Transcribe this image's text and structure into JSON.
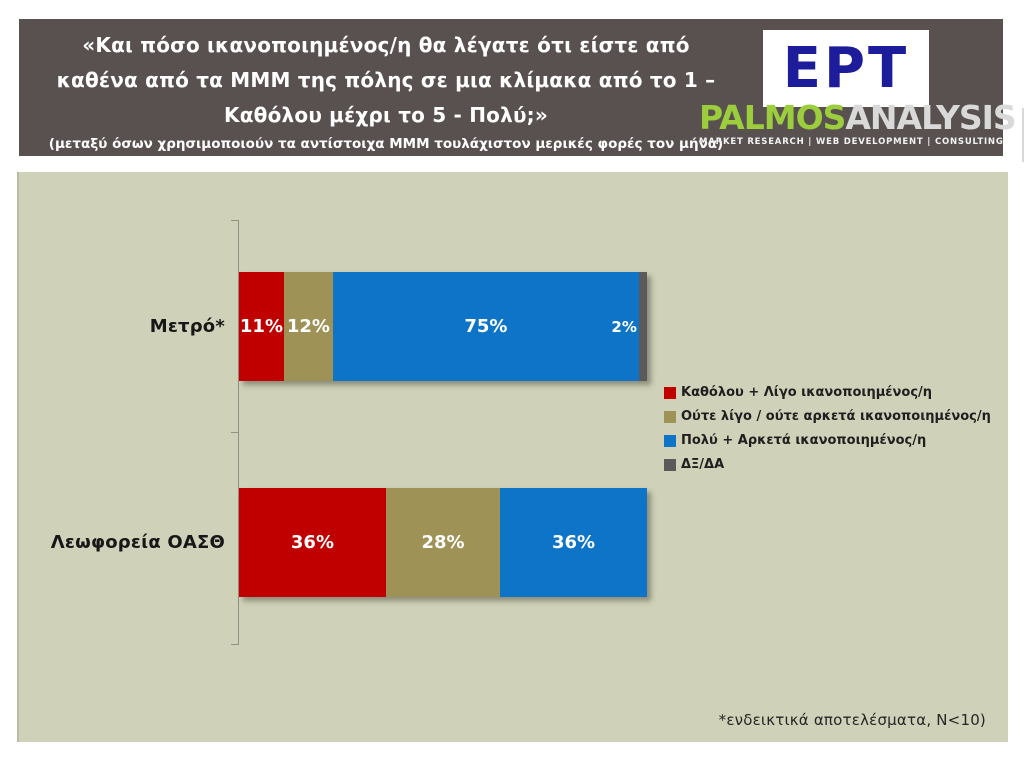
{
  "header": {
    "title_lines": [
      "«Και πόσο ικανοποιημένος/η θα λέγατε ότι είστε από",
      "καθένα από τα ΜΜΜ της πόλης σε μια κλίμακα από το 1 –",
      "Καθόλου μέχρι το 5 - Πολύ;»"
    ],
    "subtitle": "(μεταξύ όσων χρησιμοποιούν τα αντίστοιχα ΜΜΜ τουλάχιστον μερικές φορές τον μήνα)",
    "colors": {
      "header_bg": "#585150"
    },
    "logos": {
      "ert": {
        "text": "ΕΡΤ",
        "color": "#1d1d9c"
      },
      "palmos": {
        "word_part1": "PALMOS",
        "word_part2": "ANALYSIS",
        "part1_color": "#9bcd3c",
        "part2_color": "#d9d9d9",
        "tagline": "MARKET RESEARCH | WEB DEVELOPMENT | CONSULTING"
      }
    }
  },
  "chart_data": {
    "type": "bar",
    "orientation": "horizontal",
    "stacked": true,
    "categories": [
      "Μετρό*",
      "Λεωφορεία ΟΑΣΘ"
    ],
    "series": [
      {
        "name": "Καθόλου + Λίγο ικανοποιημένος/η",
        "color": "#c00000",
        "values": [
          11,
          36
        ]
      },
      {
        "name": "Ούτε λίγο / ούτε αρκετά ικανοποιημένος/η",
        "color": "#9e9256",
        "values": [
          12,
          28
        ]
      },
      {
        "name": "Πολύ + Αρκετά ικανοποιημένος/η",
        "color": "#0d74c7",
        "values": [
          75,
          36
        ]
      },
      {
        "name": "ΔΞ/ΔΑ",
        "color": "#5a5a5a",
        "values": [
          2,
          0
        ]
      }
    ],
    "value_suffix": "%",
    "xlim": [
      0,
      100
    ],
    "legend_position": "right",
    "plot_background": "#cfd1b8",
    "grid": false
  },
  "footnote": "*ενδεικτικά αποτελέσματα, N<10)"
}
